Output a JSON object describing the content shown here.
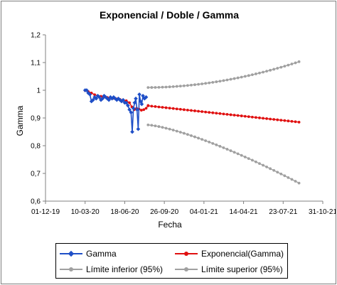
{
  "chart_data": {
    "type": "line",
    "title": "Exponencial / Doble / Gamma",
    "xlabel": "Fecha",
    "ylabel": "Gamma",
    "ylim": [
      0.6,
      1.2
    ],
    "yticks": [
      "0,6",
      "0,7",
      "0,8",
      "0,9",
      "1",
      "1,1",
      "1,2"
    ],
    "xticks": [
      "01-12-19",
      "10-03-20",
      "18-06-20",
      "26-09-20",
      "04-01-21",
      "14-04-21",
      "23-07-21",
      "31-10-21"
    ],
    "xlim": [
      "2019-12-01",
      "2021-10-31"
    ],
    "grid": false,
    "legend_position": "bottom",
    "series": [
      {
        "name": "Gamma",
        "color": "#1f4fc7",
        "marker": "diamond",
        "points": [
          [
            "2020-03-10",
            1.0
          ],
          [
            "2020-03-14",
            1.0
          ],
          [
            "2020-03-18",
            0.99
          ],
          [
            "2020-03-22",
            0.985
          ],
          [
            "2020-03-26",
            0.96
          ],
          [
            "2020-03-30",
            0.965
          ],
          [
            "2020-04-03",
            0.975
          ],
          [
            "2020-04-07",
            0.97
          ],
          [
            "2020-04-11",
            0.98
          ],
          [
            "2020-04-15",
            0.975
          ],
          [
            "2020-04-19",
            0.965
          ],
          [
            "2020-04-23",
            0.97
          ],
          [
            "2020-04-27",
            0.98
          ],
          [
            "2020-05-01",
            0.975
          ],
          [
            "2020-05-05",
            0.97
          ],
          [
            "2020-05-09",
            0.965
          ],
          [
            "2020-05-13",
            0.975
          ],
          [
            "2020-05-17",
            0.97
          ],
          [
            "2020-05-21",
            0.975
          ],
          [
            "2020-05-25",
            0.97
          ],
          [
            "2020-05-29",
            0.965
          ],
          [
            "2020-06-02",
            0.97
          ],
          [
            "2020-06-06",
            0.965
          ],
          [
            "2020-06-10",
            0.96
          ],
          [
            "2020-06-14",
            0.965
          ],
          [
            "2020-06-18",
            0.955
          ],
          [
            "2020-06-22",
            0.955
          ],
          [
            "2020-06-26",
            0.945
          ],
          [
            "2020-06-30",
            0.93
          ],
          [
            "2020-07-04",
            0.92
          ],
          [
            "2020-07-07",
            0.85
          ],
          [
            "2020-07-10",
            0.935
          ],
          [
            "2020-07-13",
            0.955
          ],
          [
            "2020-07-16",
            0.97
          ],
          [
            "2020-07-19",
            0.93
          ],
          [
            "2020-07-22",
            0.86
          ],
          [
            "2020-07-25",
            0.985
          ],
          [
            "2020-07-28",
            0.96
          ],
          [
            "2020-07-31",
            0.95
          ],
          [
            "2020-08-03",
            0.98
          ],
          [
            "2020-08-07",
            0.97
          ],
          [
            "2020-08-11",
            0.975
          ]
        ]
      },
      {
        "name": "Exponencial(Gamma)",
        "color": "#e01010",
        "marker": "circle",
        "points": [
          [
            "2020-03-10",
            0.999
          ],
          [
            "2020-03-18",
            0.995
          ],
          [
            "2020-03-26",
            0.99
          ],
          [
            "2020-04-03",
            0.984
          ],
          [
            "2020-04-11",
            0.98
          ],
          [
            "2020-04-19",
            0.978
          ],
          [
            "2020-04-27",
            0.976
          ],
          [
            "2020-05-05",
            0.974
          ],
          [
            "2020-05-13",
            0.972
          ],
          [
            "2020-05-21",
            0.971
          ],
          [
            "2020-05-29",
            0.969
          ],
          [
            "2020-06-06",
            0.967
          ],
          [
            "2020-06-14",
            0.965
          ],
          [
            "2020-06-22",
            0.962
          ],
          [
            "2020-06-30",
            0.955
          ],
          [
            "2020-07-06",
            0.94
          ],
          [
            "2020-07-12",
            0.93
          ],
          [
            "2020-07-18",
            0.935
          ],
          [
            "2020-07-24",
            0.932
          ],
          [
            "2020-07-30",
            0.928
          ],
          [
            "2020-08-05",
            0.93
          ],
          [
            "2020-08-11",
            0.935
          ],
          [
            "2020-08-16",
            0.945
          ]
        ],
        "forecast": {
          "start": [
            "2020-08-16",
            0.944
          ],
          "end": [
            "2021-09-01",
            0.885
          ],
          "steps": 42
        }
      },
      {
        "name": "Límite inferior (95%)",
        "color": "#a0a0a0",
        "marker": "circle",
        "forecast": {
          "start": [
            "2020-08-16",
            0.875
          ],
          "end": [
            "2021-09-01",
            0.665
          ],
          "steps": 42,
          "curve": 1.35
        }
      },
      {
        "name": "Límite superior (95%)",
        "color": "#a0a0a0",
        "marker": "circle",
        "forecast": {
          "start": [
            "2020-08-16",
            1.01
          ],
          "end": [
            "2021-09-01",
            1.103
          ],
          "steps": 42,
          "curve": 1.9
        }
      }
    ]
  },
  "legend": {
    "gamma": "Gamma",
    "exponencial": "Exponencial(Gamma)",
    "inferior": "Límite inferior (95%)",
    "superior": "Límite superior (95%)"
  }
}
